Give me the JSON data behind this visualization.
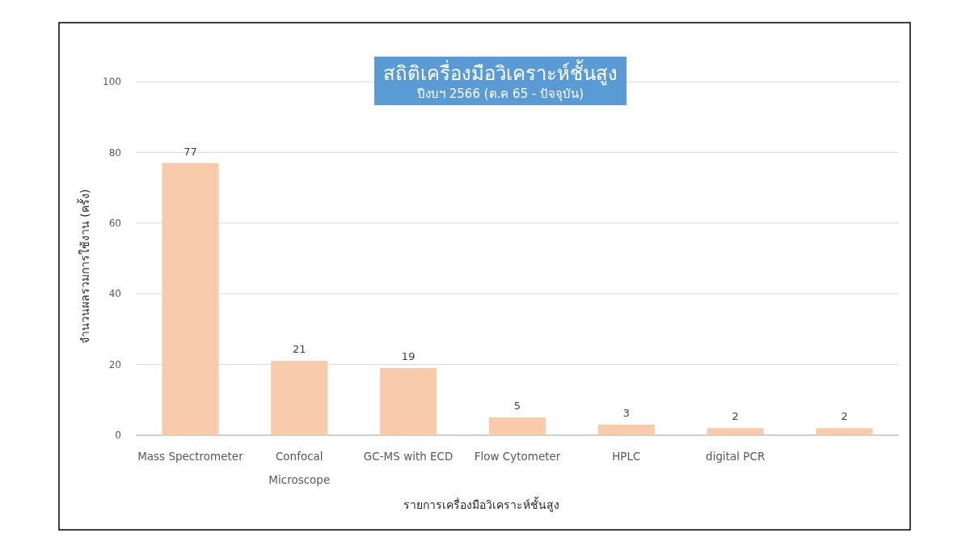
{
  "chart_data": {
    "type": "bar",
    "title": "สถิติเครื่องมือวิเคราะห์ชั้นสูง",
    "subtitle": "ปีงบฯ 2566 (ต.ค 65 - ปัจจุบัน)",
    "xlabel": "รายการเครื่องมือวิเคราะห์ชั้นสูง",
    "ylabel": "จำนวนผลรวมการใช้งาน (ครั้ง)",
    "categories": [
      "Mass Spectrometer",
      "Confocal Microscope",
      "GC-MS with ECD",
      "Flow Cytometer",
      "HPLC",
      "digital PCR",
      null
    ],
    "values": [
      77,
      21,
      19,
      5,
      3,
      2,
      2
    ],
    "color": "#f8cbad",
    "ylim": [
      0,
      100
    ],
    "yticks": [
      0,
      20,
      40,
      60,
      80,
      100
    ],
    "grid": "y",
    "data_labels": true
  }
}
